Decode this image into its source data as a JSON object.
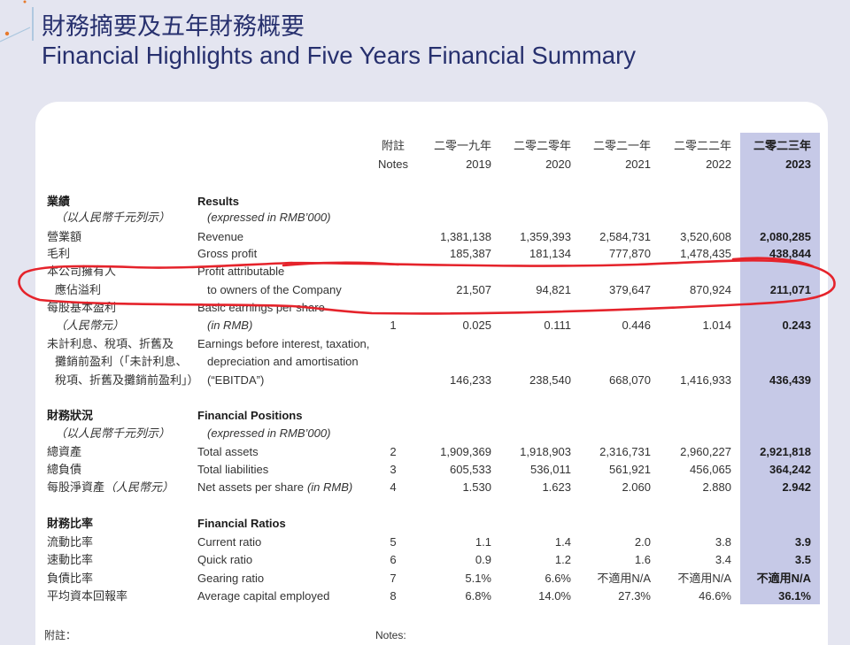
{
  "title": {
    "zh": "財務摘要及五年財務概要",
    "en": "Financial Highlights and Five Years Financial Summary"
  },
  "header": {
    "notes_zh": "附註",
    "notes_en": "Notes",
    "years": [
      {
        "zh": "二零一九年",
        "en": "2019"
      },
      {
        "zh": "二零二零年",
        "en": "2020"
      },
      {
        "zh": "二零二一年",
        "en": "2021"
      },
      {
        "zh": "二零二二年",
        "en": "2022"
      },
      {
        "zh": "二零二三年",
        "en": "2023"
      }
    ]
  },
  "sections": [
    {
      "title_zh": "業績",
      "title_en": "Results",
      "unit_zh": "（以人民幣千元列示）",
      "unit_en": "(expressed in RMB’000)",
      "rows": [
        {
          "zh": [
            "營業額"
          ],
          "en": [
            "Revenue"
          ],
          "values": [
            "1,381,138",
            "1,359,393",
            "2,584,731",
            "3,520,608",
            "2,080,285"
          ]
        },
        {
          "zh": [
            "毛利"
          ],
          "en": [
            "Gross profit"
          ],
          "values": [
            "185,387",
            "181,134",
            "777,870",
            "1,478,435",
            "438,844"
          ]
        },
        {
          "zh": [
            "本公司擁有人",
            "應佔溢利"
          ],
          "en": [
            "Profit attributable",
            "to owners of the Company"
          ],
          "values": [
            "21,507",
            "94,821",
            "379,647",
            "870,924",
            "211,071"
          ]
        },
        {
          "zh": [
            "每股基本盈利",
            "（人民幣元）"
          ],
          "en": [
            "Basic earnings per share",
            "(in RMB)"
          ],
          "note": "1",
          "values": [
            "0.025",
            "0.111",
            "0.446",
            "1.014",
            "0.243"
          ]
        },
        {
          "zh": [
            "未計利息、稅項、折舊及",
            "攤銷前盈利（「未計利息、",
            "稅項、折舊及攤銷前盈利」）"
          ],
          "en": [
            "Earnings before interest, taxation,",
            "depreciation and amortisation",
            "(“EBITDA”)"
          ],
          "values": [
            "146,233",
            "238,540",
            "668,070",
            "1,416,933",
            "436,439"
          ]
        }
      ]
    },
    {
      "title_zh": "財務狀況",
      "title_en": "Financial Positions",
      "unit_zh": "（以人民幣千元列示）",
      "unit_en": "(expressed in RMB’000)",
      "rows": [
        {
          "zh": [
            "總資產"
          ],
          "en": [
            "Total assets"
          ],
          "note": "2",
          "values": [
            "1,909,369",
            "1,918,903",
            "2,316,731",
            "2,960,227",
            "2,921,818"
          ]
        },
        {
          "zh": [
            "總負債"
          ],
          "en": [
            "Total liabilities"
          ],
          "note": "3",
          "values": [
            "605,533",
            "536,011",
            "561,921",
            "456,065",
            "364,242"
          ]
        },
        {
          "zh": [
            "每股淨資產"
          ],
          "zh_suffix": "（人民幣元）",
          "en": [
            "Net assets per share"
          ],
          "en_suffix": "(in RMB)",
          "note": "4",
          "values": [
            "1.530",
            "1.623",
            "2.060",
            "2.880",
            "2.942"
          ]
        }
      ]
    },
    {
      "title_zh": "財務比率",
      "title_en": "Financial Ratios",
      "rows": [
        {
          "zh": [
            "流動比率"
          ],
          "en": [
            "Current ratio"
          ],
          "note": "5",
          "values": [
            "1.1",
            "1.4",
            "2.0",
            "3.8",
            "3.9"
          ]
        },
        {
          "zh": [
            "速動比率"
          ],
          "en": [
            "Quick ratio"
          ],
          "note": "6",
          "values": [
            "0.9",
            "1.2",
            "1.6",
            "3.4",
            "3.5"
          ]
        },
        {
          "zh": [
            "負債比率"
          ],
          "en": [
            "Gearing ratio"
          ],
          "note": "7",
          "values": [
            "5.1%",
            "6.6%",
            "不適用N/A",
            "不適用N/A",
            "不適用N/A"
          ]
        },
        {
          "zh": [
            "平均資本回報率"
          ],
          "en": [
            "Average capital employed"
          ],
          "note": "8",
          "values": [
            "6.8%",
            "14.0%",
            "27.3%",
            "46.6%",
            "36.1%"
          ]
        }
      ]
    }
  ],
  "footer": {
    "notes_zh": "附註：",
    "notes_en": "Notes:"
  },
  "colors": {
    "page_background": "#e4e5f0",
    "card_background": "#ffffff",
    "highlight_column": "#c6c9e7",
    "title": "#27306e",
    "annotation": "#e5232b"
  }
}
